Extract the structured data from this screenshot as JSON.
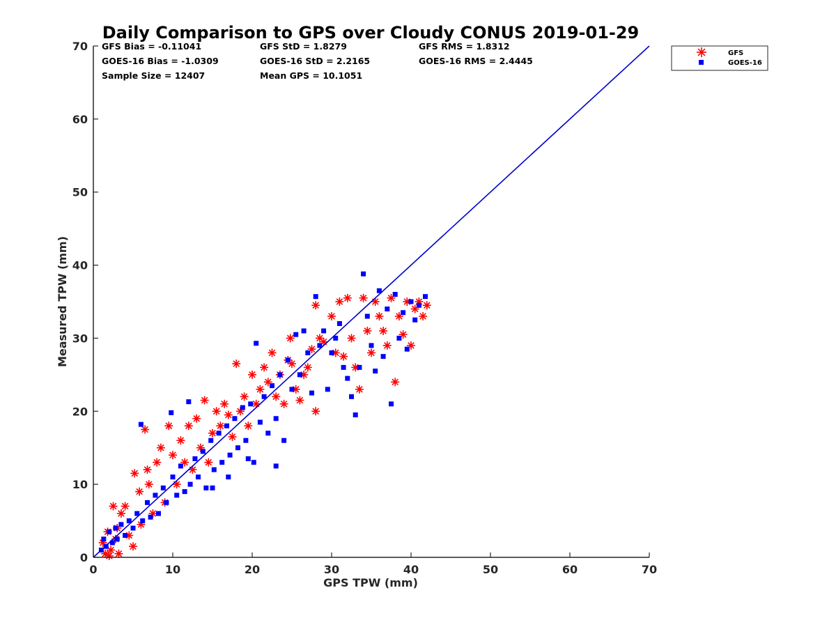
{
  "chart_data": {
    "type": "scatter",
    "title": "Daily Comparison to GPS over Cloudy CONUS 2019-01-29",
    "xlabel": "GPS TPW (mm)",
    "ylabel": "Measured TPW (mm)",
    "xlim": [
      0,
      70
    ],
    "ylim": [
      0,
      70
    ],
    "xticks": [
      "0",
      "10",
      "20",
      "30",
      "40",
      "50",
      "60",
      "70"
    ],
    "yticks": [
      "0",
      "10",
      "20",
      "30",
      "40",
      "50",
      "60",
      "70"
    ],
    "grid": false,
    "legend_position": "outside top-right",
    "stats": {
      "gfs_bias": "GFS Bias = -0.11041",
      "goes_bias": "GOES-16 Bias = -1.0309",
      "sample_size": "Sample Size = 12407",
      "gfs_std": "GFS StD = 1.8279",
      "goes_std": "GOES-16 StD = 2.2165",
      "mean_gps": "Mean GPS = 10.1051",
      "gfs_rms": "GFS RMS = 1.8312",
      "goes_rms": "GOES-16 RMS = 2.4445"
    },
    "reference_line": {
      "x": [
        0,
        70
      ],
      "y": [
        0,
        70
      ],
      "color": "#0000cc"
    },
    "series": [
      {
        "name": "GFS",
        "marker": "asterisk",
        "color": "#ff0000",
        "points": [
          [
            1.2,
            2.0
          ],
          [
            1.5,
            0.5
          ],
          [
            1.8,
            3.5
          ],
          [
            2.0,
            0.2
          ],
          [
            2.2,
            1.0
          ],
          [
            2.5,
            7.0
          ],
          [
            2.8,
            2.5
          ],
          [
            3.0,
            4.0
          ],
          [
            3.2,
            0.5
          ],
          [
            3.5,
            6.0
          ],
          [
            4.0,
            7.0
          ],
          [
            4.5,
            3.0
          ],
          [
            5.0,
            1.5
          ],
          [
            5.2,
            11.5
          ],
          [
            5.8,
            9.0
          ],
          [
            6.0,
            4.5
          ],
          [
            6.5,
            17.5
          ],
          [
            6.8,
            12.0
          ],
          [
            7.0,
            10.0
          ],
          [
            7.5,
            6.0
          ],
          [
            8.0,
            13.0
          ],
          [
            8.5,
            15.0
          ],
          [
            9.0,
            7.5
          ],
          [
            9.5,
            18.0
          ],
          [
            10.0,
            14.0
          ],
          [
            10.5,
            10.0
          ],
          [
            11.0,
            16.0
          ],
          [
            11.5,
            13.0
          ],
          [
            12.0,
            18.0
          ],
          [
            12.5,
            12.0
          ],
          [
            13.0,
            19.0
          ],
          [
            13.5,
            15.0
          ],
          [
            14.0,
            21.5
          ],
          [
            14.5,
            13.0
          ],
          [
            15.0,
            17.0
          ],
          [
            15.5,
            20.0
          ],
          [
            16.0,
            18.0
          ],
          [
            16.5,
            21.0
          ],
          [
            17.0,
            19.5
          ],
          [
            17.5,
            16.5
          ],
          [
            18.0,
            26.5
          ],
          [
            18.5,
            20.0
          ],
          [
            19.0,
            22.0
          ],
          [
            19.5,
            18.0
          ],
          [
            20.0,
            25.0
          ],
          [
            20.5,
            21.0
          ],
          [
            21.0,
            23.0
          ],
          [
            21.5,
            26.0
          ],
          [
            22.0,
            24.0
          ],
          [
            22.5,
            28.0
          ],
          [
            23.0,
            22.0
          ],
          [
            23.5,
            25.0
          ],
          [
            24.0,
            21.0
          ],
          [
            24.5,
            27.0
          ],
          [
            25.0,
            26.5
          ],
          [
            25.5,
            23.0
          ],
          [
            26.0,
            21.5
          ],
          [
            27.0,
            26.0
          ],
          [
            28.0,
            20.0
          ],
          [
            28.0,
            34.5
          ],
          [
            28.5,
            30.0
          ],
          [
            29.0,
            29.5
          ],
          [
            30.0,
            33.0
          ],
          [
            30.5,
            28.0
          ],
          [
            31.0,
            35.0
          ],
          [
            31.5,
            27.5
          ],
          [
            32.0,
            35.5
          ],
          [
            32.5,
            30.0
          ],
          [
            33.0,
            26.0
          ],
          [
            33.5,
            23.0
          ],
          [
            34.0,
            35.5
          ],
          [
            34.5,
            31.0
          ],
          [
            35.0,
            28.0
          ],
          [
            35.5,
            35.0
          ],
          [
            36.0,
            33.0
          ],
          [
            36.5,
            31.0
          ],
          [
            37.0,
            29.0
          ],
          [
            37.5,
            35.5
          ],
          [
            38.0,
            24.0
          ],
          [
            38.5,
            33.0
          ],
          [
            39.0,
            30.5
          ],
          [
            39.5,
            35.0
          ],
          [
            40.0,
            29.0
          ],
          [
            40.5,
            34.0
          ],
          [
            41.0,
            35.0
          ],
          [
            41.5,
            33.0
          ],
          [
            42.0,
            34.5
          ],
          [
            26.5,
            25.0
          ],
          [
            24.8,
            30.0
          ],
          [
            27.5,
            28.5
          ]
        ]
      },
      {
        "name": "GOES-16",
        "marker": "square",
        "color": "#0000ff",
        "points": [
          [
            1.0,
            1.0
          ],
          [
            1.3,
            2.5
          ],
          [
            1.6,
            1.5
          ],
          [
            2.0,
            3.5
          ],
          [
            2.4,
            2.0
          ],
          [
            2.8,
            4.0
          ],
          [
            3.0,
            2.5
          ],
          [
            3.5,
            4.5
          ],
          [
            4.0,
            3.0
          ],
          [
            4.5,
            5.0
          ],
          [
            5.0,
            4.0
          ],
          [
            5.5,
            6.0
          ],
          [
            6.0,
            18.2
          ],
          [
            6.2,
            5.0
          ],
          [
            6.8,
            7.5
          ],
          [
            7.2,
            5.5
          ],
          [
            7.8,
            8.5
          ],
          [
            8.2,
            6.0
          ],
          [
            8.8,
            9.5
          ],
          [
            9.2,
            7.5
          ],
          [
            9.8,
            19.8
          ],
          [
            10.0,
            11.0
          ],
          [
            10.5,
            8.5
          ],
          [
            11.0,
            12.5
          ],
          [
            11.5,
            9.0
          ],
          [
            12.0,
            21.3
          ],
          [
            12.2,
            10.0
          ],
          [
            12.8,
            13.5
          ],
          [
            13.2,
            11.0
          ],
          [
            13.8,
            14.5
          ],
          [
            14.2,
            9.5
          ],
          [
            14.8,
            16.0
          ],
          [
            15.2,
            12.0
          ],
          [
            15.8,
            17.0
          ],
          [
            16.2,
            13.0
          ],
          [
            16.8,
            18.0
          ],
          [
            17.2,
            14.0
          ],
          [
            17.8,
            19.0
          ],
          [
            18.2,
            15.0
          ],
          [
            18.8,
            20.5
          ],
          [
            19.2,
            16.0
          ],
          [
            19.8,
            21.0
          ],
          [
            20.2,
            13.0
          ],
          [
            20.5,
            29.3
          ],
          [
            21.0,
            18.5
          ],
          [
            21.5,
            22.0
          ],
          [
            22.0,
            17.0
          ],
          [
            22.5,
            23.5
          ],
          [
            23.0,
            19.0
          ],
          [
            23.5,
            25.0
          ],
          [
            24.0,
            16.0
          ],
          [
            24.5,
            27.0
          ],
          [
            25.0,
            23.0
          ],
          [
            25.5,
            30.5
          ],
          [
            26.0,
            25.0
          ],
          [
            26.5,
            31.0
          ],
          [
            27.0,
            28.0
          ],
          [
            27.5,
            22.5
          ],
          [
            28.0,
            35.7
          ],
          [
            28.5,
            29.0
          ],
          [
            29.0,
            31.0
          ],
          [
            29.5,
            23.0
          ],
          [
            30.0,
            28.0
          ],
          [
            30.5,
            30.0
          ],
          [
            31.0,
            32.0
          ],
          [
            31.5,
            26.0
          ],
          [
            32.0,
            24.5
          ],
          [
            32.5,
            22.0
          ],
          [
            33.0,
            19.5
          ],
          [
            33.5,
            26.0
          ],
          [
            34.0,
            38.8
          ],
          [
            34.5,
            33.0
          ],
          [
            35.0,
            29.0
          ],
          [
            35.5,
            25.5
          ],
          [
            36.0,
            36.5
          ],
          [
            36.5,
            27.5
          ],
          [
            37.0,
            34.0
          ],
          [
            37.5,
            21.0
          ],
          [
            38.0,
            36.0
          ],
          [
            38.5,
            30.0
          ],
          [
            39.0,
            33.5
          ],
          [
            39.5,
            28.5
          ],
          [
            40.0,
            35.0
          ],
          [
            40.5,
            32.5
          ],
          [
            41.0,
            34.5
          ],
          [
            41.8,
            35.7
          ],
          [
            23.0,
            12.5
          ],
          [
            19.5,
            13.5
          ],
          [
            17.0,
            11.0
          ],
          [
            15.0,
            9.5
          ]
        ]
      }
    ]
  }
}
